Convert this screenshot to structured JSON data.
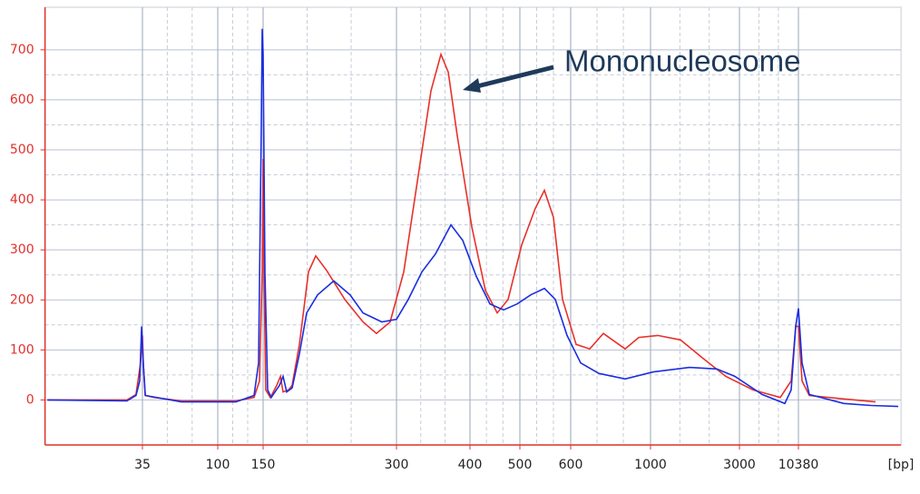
{
  "chart_data": {
    "type": "line",
    "annotation": "Mononucleosome",
    "x_unit": "[bp]",
    "xscale": "log",
    "xlim": [
      9,
      90000
    ],
    "ylim": [
      -90,
      785
    ],
    "xticks": [
      35,
      100,
      150,
      300,
      400,
      500,
      600,
      1000,
      3000,
      10380
    ],
    "yticks": [
      0,
      100,
      200,
      300,
      400,
      500,
      600,
      700
    ],
    "grid": true,
    "series": [
      {
        "color": "#e8312a",
        "x": [
          9.3,
          28.2,
          32.0,
          34.1,
          35,
          35.4,
          36.4,
          41.3,
          60.3,
          117.6,
          138.3,
          145.2,
          148.8,
          150,
          150.7,
          152.1,
          155.8,
          161,
          164.1,
          166.4,
          171.2,
          174.4,
          181.1,
          189.9,
          197.2,
          208.7,
          229.3,
          252.1,
          270.3,
          290.2,
          308.7,
          325.5,
          343.4,
          357,
          367.4,
          380.6,
          403.3,
          428.6,
          451.8,
          474.3,
          503.3,
          528.4,
          546,
          564,
          582.7,
          621.3,
          677.8,
          739.5,
          783.6,
          850,
          927.4,
          1094,
          1448,
          1916,
          2535,
          3995,
          7083,
          8909,
          9801,
          10380,
          11204,
          13052,
          26980,
          52650
        ],
        "values": [
          0,
          0,
          11,
          74,
          129,
          74,
          9,
          5,
          -2,
          -2,
          5,
          38,
          256,
          482,
          256,
          20,
          5,
          29,
          47,
          16,
          20,
          29,
          111,
          256,
          288,
          259,
          201,
          156,
          133,
          156,
          256,
          437,
          618,
          691,
          655,
          528,
          346,
          219,
          174,
          201,
          310,
          383,
          419,
          365,
          201,
          111,
          102,
          133,
          120,
          102,
          125,
          129,
          120,
          83,
          47,
          20,
          5,
          38,
          147,
          147,
          38,
          9,
          2,
          -4
        ]
      },
      {
        "color": "#1a2ee0",
        "x": [
          9.3,
          28.2,
          32.0,
          33.7,
          34.6,
          35.4,
          36.4,
          60.3,
          117.6,
          138.3,
          144,
          147.5,
          148.8,
          150,
          151.4,
          153.6,
          156.5,
          163.3,
          166.4,
          169.6,
          174.4,
          181.1,
          188.1,
          199.1,
          216.6,
          235.6,
          252.1,
          277.9,
          300,
          314.2,
          331.4,
          349.5,
          371.3,
          388.8,
          411.5,
          437.3,
          464.8,
          494,
          519.9,
          546,
          567.7,
          592.2,
          639.6,
          718.3,
          850,
          1034,
          1619,
          2266,
          2836,
          4836,
          7794,
          8909,
          9801,
          10380,
          11204,
          13052,
          26980,
          47870,
          84840
        ],
        "values": [
          0,
          -2,
          9,
          38,
          147,
          74,
          9,
          -4,
          -4,
          9,
          74,
          528,
          742,
          691,
          256,
          20,
          5,
          29,
          47,
          16,
          24,
          92,
          174,
          210,
          238,
          210,
          174,
          156,
          161,
          201,
          256,
          292,
          350,
          319,
          247,
          192,
          180,
          192,
          210,
          223,
          201,
          129,
          74,
          53,
          42,
          56,
          65,
          62,
          47,
          11,
          -7,
          20,
          147,
          183,
          74,
          11,
          -7,
          -11,
          -13
        ]
      }
    ]
  }
}
